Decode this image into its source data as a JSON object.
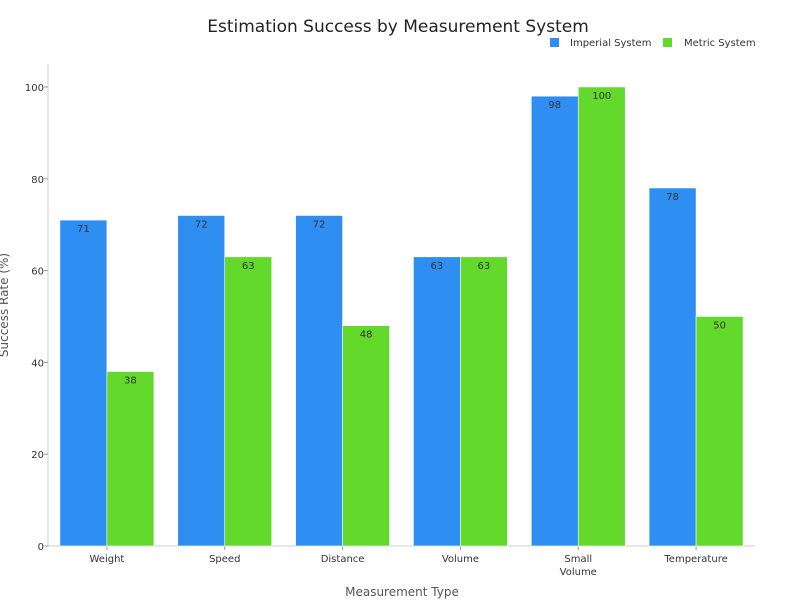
{
  "chart_data": {
    "type": "bar",
    "title": "Estimation Success by Measurement System",
    "xlabel": "Measurement Type",
    "ylabel": "Success Rate (%)",
    "categories": [
      "Weight",
      "Speed",
      "Distance",
      "Volume",
      "Small Volume",
      "Temperature"
    ],
    "category_lines": [
      [
        "Weight"
      ],
      [
        "Speed"
      ],
      [
        "Distance"
      ],
      [
        "Volume"
      ],
      [
        "Small",
        "Volume"
      ],
      [
        "Temperature"
      ]
    ],
    "series": [
      {
        "name": "Imperial System",
        "color": "#2e8ef2",
        "values": [
          71,
          72,
          72,
          63,
          98,
          78
        ]
      },
      {
        "name": "Metric System",
        "color": "#62d92b",
        "values": [
          38,
          63,
          48,
          63,
          100,
          50
        ]
      }
    ],
    "ylim": [
      0,
      105
    ],
    "yticks": [
      0,
      20,
      40,
      60,
      80,
      100
    ],
    "grid": false,
    "legend_position": "top-right",
    "data_labels": true
  }
}
